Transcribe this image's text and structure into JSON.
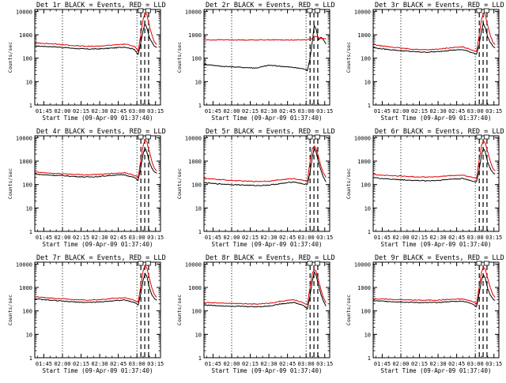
{
  "colors": {
    "events": "#000000",
    "lld": "#e00000",
    "axis": "#000000",
    "background": "#ffffff"
  },
  "shared": {
    "xlabel": "Start Time (09-Apr-09 01:37:40)",
    "ylabel": "Counts/sec",
    "yticks": [
      "1",
      "10",
      "100",
      "1000",
      "10000"
    ]
  },
  "chart_data": [
    {
      "type": "line",
      "title": "Det 1r BLACK = Events, RED = LLD",
      "xlabel": "Start Time (09-Apr-09 01:37:40)",
      "ylabel": "Counts/sec",
      "xticks": [
        "01:45",
        "02:00",
        "02:15",
        "02:30",
        "02:45",
        "03:00",
        "03:15"
      ],
      "x_tick_minutes": [
        105,
        120,
        135,
        150,
        165,
        180,
        195
      ],
      "xlim_minutes": [
        97.7,
        199
      ],
      "ylim": [
        1,
        12000
      ],
      "yscale": "log",
      "marker_flags": [
        183,
        189
      ],
      "dotted_lines_minutes": [
        120,
        180
      ],
      "dashed_lines_minutes": [
        183.2,
        186.3,
        189.4
      ],
      "x": [
        98,
        105,
        112,
        120,
        130,
        140,
        150,
        160,
        170,
        178,
        181,
        183,
        185,
        186.5,
        188,
        190,
        192,
        194,
        196
      ],
      "series": [
        {
          "name": "Events",
          "color": "#000000",
          "values": [
            330,
            320,
            310,
            290,
            260,
            245,
            250,
            270,
            300,
            240,
            140,
            420,
            1500,
            3000,
            2000,
            800,
            480,
            330,
            280
          ]
        },
        {
          "name": "LLD",
          "color": "#e00000",
          "values": [
            450,
            430,
            410,
            380,
            340,
            320,
            330,
            360,
            400,
            330,
            200,
            900,
            4500,
            8500,
            7000,
            2500,
            1000,
            500,
            380
          ]
        }
      ]
    },
    {
      "type": "line",
      "title": "Det 2r BLACK = Events, RED = LLD",
      "xlabel": "Start Time (09-Apr-09 01:37:40)",
      "ylabel": "Counts/sec",
      "xticks": [
        "01:45",
        "02:00",
        "02:15",
        "02:30",
        "02:45",
        "03:00",
        "03:15"
      ],
      "x_tick_minutes": [
        105,
        120,
        135,
        150,
        165,
        180,
        195
      ],
      "xlim_minutes": [
        97.7,
        199
      ],
      "ylim": [
        1,
        12000
      ],
      "yscale": "log",
      "marker_flags": [
        183,
        189
      ],
      "dotted_lines_minutes": [
        120,
        180
      ],
      "dashed_lines_minutes": [
        183.2,
        186.3,
        189.4
      ],
      "x": [
        98,
        105,
        112,
        120,
        130,
        140,
        150,
        160,
        170,
        178,
        181,
        183,
        185,
        186.5,
        188,
        190,
        192,
        194,
        196
      ],
      "series": [
        {
          "name": "Events",
          "color": "#000000",
          "values": [
            55,
            50,
            45,
            43,
            40,
            38,
            50,
            45,
            40,
            35,
            30,
            90,
            500,
            2500,
            1800,
            600,
            800,
            600,
            400
          ]
        },
        {
          "name": "LLD",
          "color": "#e00000",
          "values": [
            600,
            600,
            610,
            600,
            600,
            600,
            610,
            600,
            600,
            610,
            620,
            640,
            700,
            900,
            850,
            750,
            700,
            680,
            650
          ]
        }
      ]
    },
    {
      "type": "line",
      "title": "Det 3r BLACK = Events, RED = LLD",
      "xlabel": "Start Time (09-Apr-09 01:37:40)",
      "ylabel": "Counts/sec",
      "xticks": [
        "01:45",
        "02:00",
        "02:15",
        "02:30",
        "02:45",
        "03:00",
        "03:15"
      ],
      "x_tick_minutes": [
        105,
        120,
        135,
        150,
        165,
        180,
        195
      ],
      "xlim_minutes": [
        97.7,
        199
      ],
      "ylim": [
        1,
        12000
      ],
      "yscale": "log",
      "marker_flags": [
        183,
        189
      ],
      "dotted_lines_minutes": [
        120,
        180
      ],
      "dashed_lines_minutes": [
        183.2,
        186.3,
        189.4
      ],
      "x": [
        98,
        105,
        112,
        120,
        130,
        140,
        150,
        160,
        170,
        178,
        181,
        183,
        185,
        186.5,
        188,
        190,
        192,
        194,
        196
      ],
      "series": [
        {
          "name": "Events",
          "color": "#000000",
          "values": [
            280,
            250,
            230,
            210,
            190,
            180,
            190,
            220,
            230,
            170,
            150,
            350,
            1500,
            3000,
            2000,
            800,
            480,
            330,
            280
          ]
        },
        {
          "name": "LLD",
          "color": "#e00000",
          "values": [
            380,
            330,
            300,
            270,
            240,
            230,
            240,
            280,
            300,
            220,
            190,
            900,
            4500,
            8500,
            7000,
            2500,
            1000,
            500,
            380
          ]
        }
      ]
    },
    {
      "type": "line",
      "title": "Det 4r BLACK = Events, RED = LLD",
      "xlabel": "Start Time (09-Apr-09 01:37:40)",
      "ylabel": "Counts/sec",
      "xticks": [
        "01:45",
        "02:00",
        "02:15",
        "02:30",
        "02:45",
        "03:00",
        "03:15"
      ],
      "x_tick_minutes": [
        105,
        120,
        135,
        150,
        165,
        180,
        195
      ],
      "xlim_minutes": [
        97.7,
        199
      ],
      "ylim": [
        1,
        12000
      ],
      "yscale": "log",
      "marker_flags": [
        183,
        189
      ],
      "dotted_lines_minutes": [
        120,
        180
      ],
      "dashed_lines_minutes": [
        183.2,
        186.3,
        189.4
      ],
      "x": [
        98,
        105,
        112,
        120,
        130,
        140,
        150,
        160,
        170,
        178,
        181,
        183,
        185,
        186.5,
        188,
        190,
        192,
        194,
        196
      ],
      "series": [
        {
          "name": "Events",
          "color": "#000000",
          "values": [
            280,
            260,
            250,
            240,
            220,
            210,
            220,
            250,
            260,
            200,
            150,
            500,
            2000,
            3500,
            2500,
            900,
            500,
            350,
            300
          ]
        },
        {
          "name": "LLD",
          "color": "#e00000",
          "values": [
            340,
            320,
            300,
            290,
            270,
            260,
            270,
            300,
            320,
            250,
            200,
            1000,
            4500,
            8000,
            6500,
            2500,
            1000,
            500,
            380
          ]
        }
      ]
    },
    {
      "type": "line",
      "title": "Det 5r BLACK = Events, RED = LLD",
      "xlabel": "Start Time (09-Apr-09 01:37:40)",
      "ylabel": "Counts/sec",
      "xticks": [
        "01:45",
        "02:00",
        "02:15",
        "02:30",
        "02:45",
        "03:00",
        "03:15"
      ],
      "x_tick_minutes": [
        105,
        120,
        135,
        150,
        165,
        180,
        195
      ],
      "xlim_minutes": [
        97.7,
        199
      ],
      "ylim": [
        1,
        12000
      ],
      "yscale": "log",
      "marker_flags": [
        183,
        189
      ],
      "dotted_lines_minutes": [
        120,
        180
      ],
      "dashed_lines_minutes": [
        183.2,
        186.3,
        189.4
      ],
      "x": [
        98,
        105,
        112,
        120,
        130,
        140,
        150,
        160,
        170,
        178,
        181,
        183,
        185,
        186.5,
        188,
        190,
        192,
        194,
        196
      ],
      "series": [
        {
          "name": "Events",
          "color": "#000000",
          "values": [
            120,
            110,
            105,
            100,
            95,
            90,
            95,
            110,
            130,
            105,
            100,
            300,
            1500,
            3500,
            2500,
            900,
            400,
            200,
            130
          ]
        },
        {
          "name": "LLD",
          "color": "#e00000",
          "values": [
            180,
            170,
            160,
            150,
            140,
            135,
            140,
            160,
            180,
            150,
            140,
            800,
            3500,
            4500,
            3500,
            1500,
            600,
            300,
            200
          ]
        }
      ]
    },
    {
      "type": "line",
      "title": "Det 6r BLACK = Events, RED = LLD",
      "xlabel": "Start Time (09-Apr-09 01:37:40)",
      "ylabel": "Counts/sec",
      "xticks": [
        "01:45",
        "02:00",
        "02:15",
        "02:30",
        "02:45",
        "03:00",
        "03:15"
      ],
      "x_tick_minutes": [
        105,
        120,
        135,
        150,
        165,
        180,
        195
      ],
      "xlim_minutes": [
        97.7,
        199
      ],
      "ylim": [
        1,
        12000
      ],
      "yscale": "log",
      "marker_flags": [
        183,
        189
      ],
      "dotted_lines_minutes": [
        120,
        180
      ],
      "dashed_lines_minutes": [
        183.2,
        186.3,
        189.4
      ],
      "x": [
        98,
        105,
        112,
        120,
        130,
        140,
        150,
        160,
        170,
        178,
        181,
        183,
        185,
        186.5,
        188,
        190,
        192,
        194,
        196
      ],
      "series": [
        {
          "name": "Events",
          "color": "#000000",
          "values": [
            200,
            180,
            170,
            160,
            150,
            145,
            150,
            170,
            180,
            140,
            130,
            400,
            1800,
            3500,
            2500,
            900,
            480,
            330,
            280
          ]
        },
        {
          "name": "LLD",
          "color": "#e00000",
          "values": [
            270,
            250,
            240,
            230,
            215,
            210,
            215,
            240,
            250,
            200,
            180,
            1000,
            4500,
            7500,
            6000,
            2500,
            1000,
            500,
            380
          ]
        }
      ]
    },
    {
      "type": "line",
      "title": "Det 7r BLACK = Events, RED = LLD",
      "xlabel": "Start Time (09-Apr-09 01:37:40)",
      "ylabel": "Counts/sec",
      "xticks": [
        "01:45",
        "02:00",
        "02:15",
        "02:30",
        "02:45",
        "03:00",
        "03:15"
      ],
      "x_tick_minutes": [
        105,
        120,
        135,
        150,
        165,
        180,
        195
      ],
      "xlim_minutes": [
        97.7,
        199
      ],
      "ylim": [
        1,
        12000
      ],
      "yscale": "log",
      "marker_flags": [
        183,
        189
      ],
      "dotted_lines_minutes": [
        120,
        180
      ],
      "dashed_lines_minutes": [
        183.2,
        186.3,
        189.4
      ],
      "x": [
        98,
        105,
        112,
        120,
        130,
        140,
        150,
        160,
        170,
        178,
        181,
        183,
        185,
        186.5,
        188,
        190,
        192,
        194,
        196
      ],
      "series": [
        {
          "name": "Events",
          "color": "#000000",
          "values": [
            330,
            300,
            280,
            260,
            240,
            230,
            240,
            270,
            290,
            230,
            180,
            500,
            2000,
            4000,
            3000,
            1000,
            500,
            330,
            280
          ]
        },
        {
          "name": "LLD",
          "color": "#e00000",
          "values": [
            400,
            370,
            350,
            330,
            300,
            290,
            300,
            340,
            360,
            290,
            230,
            1100,
            5000,
            8500,
            7000,
            2500,
            1000,
            500,
            380
          ]
        }
      ]
    },
    {
      "type": "line",
      "title": "Det 8r BLACK = Events, RED = LLD",
      "xlabel": "Start Time (09-Apr-09 01:37:40)",
      "ylabel": "Counts/sec",
      "xticks": [
        "01:45",
        "02:00",
        "02:15",
        "02:30",
        "02:45",
        "03:00",
        "03:15"
      ],
      "x_tick_minutes": [
        105,
        120,
        135,
        150,
        165,
        180,
        195
      ],
      "xlim_minutes": [
        97.7,
        199
      ],
      "ylim": [
        1,
        12000
      ],
      "yscale": "log",
      "marker_flags": [
        183,
        189
      ],
      "dotted_lines_minutes": [
        120,
        180
      ],
      "dashed_lines_minutes": [
        183.2,
        186.3,
        189.4
      ],
      "x": [
        98,
        105,
        112,
        120,
        130,
        140,
        150,
        160,
        170,
        178,
        181,
        183,
        185,
        186.5,
        188,
        190,
        192,
        194,
        196
      ],
      "series": [
        {
          "name": "Events",
          "color": "#000000",
          "values": [
            180,
            170,
            165,
            160,
            155,
            150,
            160,
            200,
            230,
            170,
            120,
            400,
            1800,
            4500,
            3500,
            1200,
            500,
            250,
            160
          ]
        },
        {
          "name": "LLD",
          "color": "#e00000",
          "values": [
            230,
            220,
            215,
            210,
            200,
            195,
            210,
            260,
            300,
            220,
            180,
            900,
            4000,
            6000,
            5000,
            2000,
            800,
            350,
            220
          ]
        }
      ]
    },
    {
      "type": "line",
      "title": "Det 9r BLACK = Events, RED = LLD",
      "xlabel": "Start Time (09-Apr-09 01:37:40)",
      "ylabel": "Counts/sec",
      "xticks": [
        "01:45",
        "02:00",
        "02:15",
        "02:30",
        "02:45",
        "03:00",
        "03:15"
      ],
      "x_tick_minutes": [
        105,
        120,
        135,
        150,
        165,
        180,
        195
      ],
      "xlim_minutes": [
        97.7,
        199
      ],
      "ylim": [
        1,
        12000
      ],
      "yscale": "log",
      "marker_flags": [
        183,
        189
      ],
      "dotted_lines_minutes": [
        120,
        180
      ],
      "dashed_lines_minutes": [
        183.2,
        186.3,
        189.4
      ],
      "x": [
        98,
        105,
        112,
        120,
        130,
        140,
        150,
        160,
        170,
        178,
        181,
        183,
        185,
        186.5,
        188,
        190,
        192,
        194,
        196
      ],
      "series": [
        {
          "name": "Events",
          "color": "#000000",
          "values": [
            270,
            260,
            250,
            240,
            230,
            225,
            230,
            250,
            260,
            200,
            150,
            500,
            2000,
            3500,
            2500,
            900,
            480,
            330,
            280
          ]
        },
        {
          "name": "LLD",
          "color": "#e00000",
          "values": [
            330,
            320,
            310,
            300,
            290,
            285,
            290,
            310,
            320,
            250,
            200,
            1000,
            4500,
            7500,
            6000,
            2500,
            1000,
            500,
            380
          ]
        }
      ]
    }
  ]
}
